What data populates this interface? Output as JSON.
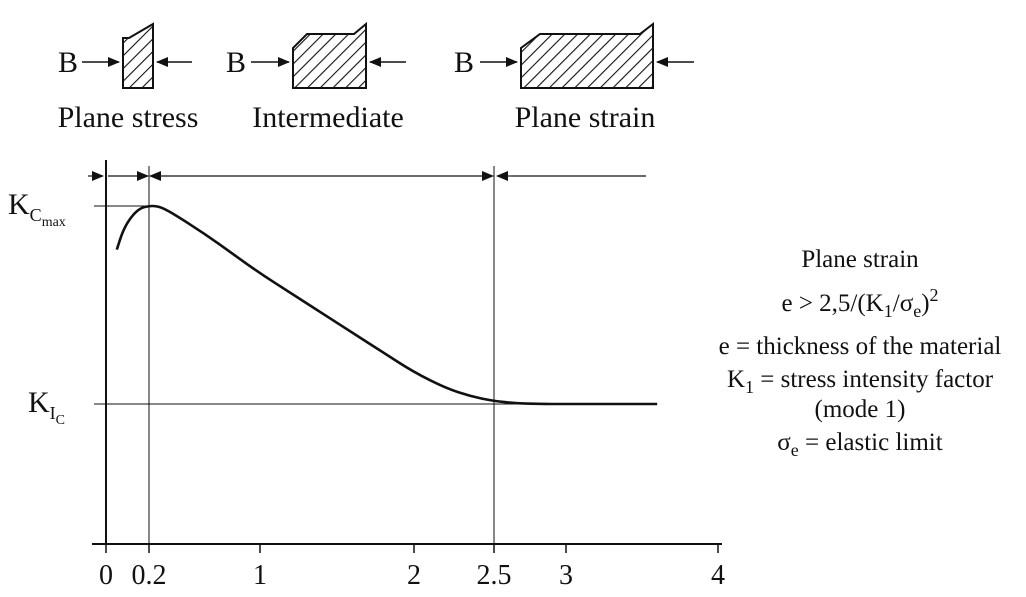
{
  "chart_data": {
    "type": "line",
    "x_ticks": [
      "0",
      "0.2",
      "1",
      "2",
      "2.5",
      "3",
      "4"
    ],
    "x_tick_values": [
      0,
      0.2,
      1,
      2,
      2.5,
      3,
      4
    ],
    "xlim": [
      0,
      4
    ],
    "y_levels": {
      "Kc_max": 1.0,
      "KIC": 0.0
    },
    "y_tick_labels": {
      "kcmax_main": "K",
      "kcmax_sub1": "C",
      "kcmax_sub2": "max",
      "kic_main": "K",
      "kic_sub1": "I",
      "kic_sub2": "C"
    },
    "series": [
      {
        "x": [
          0.05,
          0.08,
          0.12,
          0.16,
          0.2,
          0.25,
          0.3,
          0.4,
          0.6,
          0.8,
          1.0,
          1.2,
          1.4,
          1.6,
          1.8,
          2.0,
          2.2,
          2.35,
          2.5,
          2.65,
          2.8,
          3.0,
          3.2,
          3.4,
          3.6
        ],
        "y": [
          0.78,
          0.88,
          0.95,
          0.99,
          1.0,
          1.0,
          0.99,
          0.95,
          0.86,
          0.76,
          0.66,
          0.56,
          0.46,
          0.36,
          0.26,
          0.16,
          0.08,
          0.04,
          0.015,
          0.004,
          0.0,
          0.0,
          0.0,
          0.0,
          0.0
        ]
      }
    ],
    "regions": [
      {
        "label": "Plane stress",
        "x_range": [
          0,
          0.2
        ]
      },
      {
        "label": "Intermediate",
        "x_range": [
          0.2,
          2.5
        ]
      },
      {
        "label": "Plane strain",
        "x_range": [
          2.5,
          3.6
        ]
      }
    ],
    "grid": false
  },
  "specimens": [
    {
      "label": "Plane stress",
      "b_label": "B"
    },
    {
      "label": "Intermediate",
      "b_label": "B"
    },
    {
      "label": "Plane strain",
      "b_label": "B"
    }
  ],
  "legend_note": {
    "title": "Plane strain",
    "formula_prefix": "e > 2,5/(K",
    "formula_sub1": "1",
    "formula_mid": "/σ",
    "formula_sub2": "e",
    "formula_end": ")",
    "formula_sup": "2",
    "line_e": "e = thickness of the material",
    "k1_main": "K",
    "k1_sub": "1",
    "k1_text": " = stress intensity factor",
    "mode": "(mode 1)",
    "sigma_main": "σ",
    "sigma_sub": "e",
    "sigma_text": " = elastic limit"
  },
  "colors": {
    "line": "#111111",
    "background": "#ffffff"
  }
}
